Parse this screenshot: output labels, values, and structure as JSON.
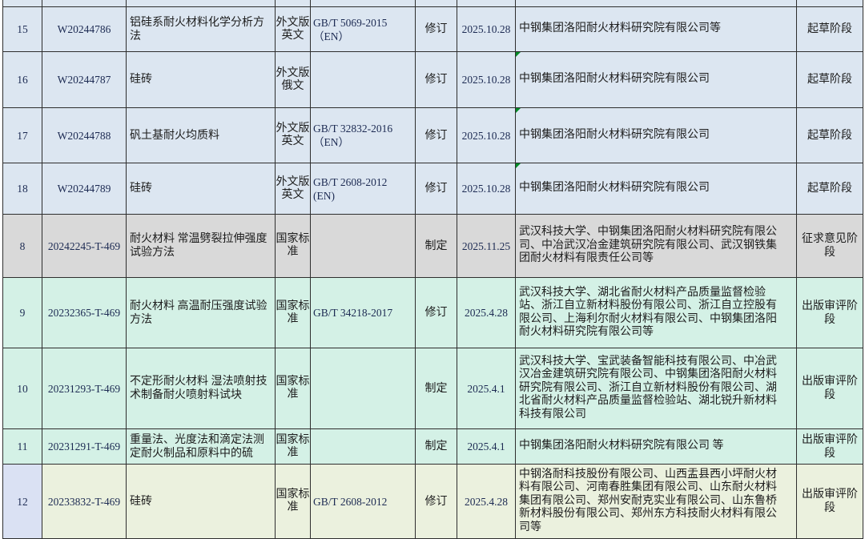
{
  "colors": {
    "grid": "#2e2e2e",
    "row_blue": "#dce6f1",
    "row_gray": "#d9d9d9",
    "row_cyan": "#d4f1e6",
    "row_green": "#ebf1de",
    "num_lavender": "#dae1f3",
    "comment_triangle_green": "#008a26"
  },
  "rows": [
    {
      "num": "15",
      "code": "W20244786",
      "name": "铝硅系耐火材料化学分析方法",
      "type": "外文版英文",
      "ref": "GB/T 5069-2015\n（EN）",
      "action": "修订",
      "date": "2025.10.28",
      "orgs": "中钢集团洛阳耐火材料研究院有限公司等",
      "status": "起草阶段",
      "theme": "blue",
      "num_theme": "blue",
      "comment_marker": false
    },
    {
      "num": "16",
      "code": "W20244787",
      "name": "硅砖",
      "type": "外文版俄文",
      "ref": "",
      "action": "修订",
      "date": "2025.10.28",
      "orgs": "中钢集团洛阳耐火材料研究院有限公司",
      "status": "起草阶段",
      "theme": "blue",
      "num_theme": "blue",
      "comment_marker": true
    },
    {
      "num": "17",
      "code": "W20244788",
      "name": "矾土基耐火均质料",
      "type": "外文版英文",
      "ref": "GB/T 32832-2016\n（EN）",
      "action": "修订",
      "date": "2025.10.28",
      "orgs": "中钢集团洛阳耐火材料研究院有限公司",
      "status": "起草阶段",
      "theme": "blue",
      "num_theme": "blue",
      "comment_marker": true
    },
    {
      "num": "18",
      "code": "W20244789",
      "name": "硅砖",
      "type": "外文版英文",
      "ref": "GB/T 2608-2012\n(EN)",
      "action": "修订",
      "date": "2025.10.28",
      "orgs": "中钢集团洛阳耐火材料研究院有限公司",
      "status": "起草阶段",
      "theme": "blue",
      "num_theme": "blue",
      "comment_marker": true
    },
    {
      "num": "8",
      "code": "20242245-T-469",
      "name": "耐火材料 常温劈裂拉伸强度试验方法",
      "type": "国家标准",
      "ref": "",
      "action": "制定",
      "date": "2025.11.25",
      "orgs": "武汉科技大学、中钢集团洛阳耐火材料研究院有限公司、中冶武汉冶金建筑研究院有限公司、武汉钢铁集团耐火材料有限责任公司等",
      "status": "征求意见阶段",
      "theme": "gray",
      "num_theme": "gray",
      "comment_marker": false
    },
    {
      "num": "9",
      "code": "20232365-T-469",
      "name": "耐火材料 高温耐压强度试验方法",
      "type": "国家标准",
      "ref": "GB/T 34218-2017",
      "action": "修订",
      "date": "2025.4.28",
      "orgs": "武汉科技大学、湖北省耐火材料产品质量监督检验站、浙江自立新材料股份有限公司、浙江自立控股有限公司、上海利尔耐火材料有限公司、中钢集团洛阳耐火材料研究院有限公司等",
      "status": "出版审评阶段",
      "theme": "cyan",
      "num_theme": "cyan",
      "comment_marker": false
    },
    {
      "num": "10",
      "code": "20231293-T-469",
      "name": "不定形耐火材料 湿法喷射技术制备耐火喷射料试块",
      "type": "国家标准",
      "ref": "",
      "action": "制定",
      "date": "2025.4.1",
      "orgs": "武汉科技大学、宝武装备智能科技有限公司、中冶武汉冶金建筑研究院有限公司、中钢集团洛阳耐火材料研究院有限公司、浙江自立新材料股份有限公司、湖北省耐火材料产品质量监督检验站、湖北锐升新材料科技有限公司",
      "status": "出版审评阶段",
      "theme": "cyan",
      "num_theme": "cyan",
      "comment_marker": false
    },
    {
      "num": "11",
      "code": "20231291-T-469",
      "name": "重量法、光度法和滴定法测定耐火制品和原料中的硫",
      "type": "国家标准",
      "ref": "",
      "action": "制定",
      "date": "2025.4.1",
      "orgs": "中钢集团洛阳耐火材料研究院有限公司 等",
      "status": "出版审评阶段",
      "theme": "cyan",
      "num_theme": "cyan",
      "comment_marker": false
    },
    {
      "num": "12",
      "code": "20233832-T-469",
      "name": "硅砖",
      "type": "国家标准",
      "ref": "GB/T 2608-2012",
      "action": "修订",
      "date": "2025.4.28",
      "orgs": "中钢洛耐科技股份有限公司、山西盂县西小坪耐火材料有限公司、河南春胜集团有限公司、山东耐火材料集团有限公司、郑州安耐克实业有限公司、山东鲁桥新材料股份有限公司、郑州东方科技耐火材料有限公司等",
      "status": "出版审评阶段",
      "theme": "green",
      "num_theme": "lavender",
      "comment_marker": false
    }
  ]
}
